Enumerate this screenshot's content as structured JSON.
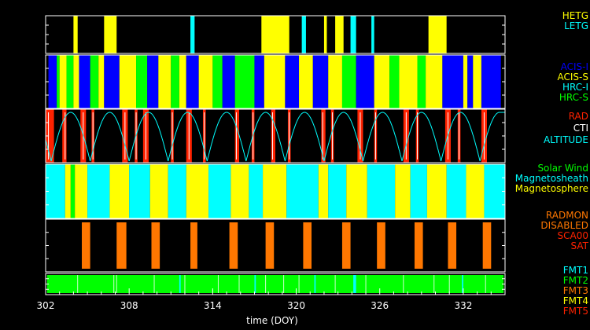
{
  "chart_data": {
    "type": "timeline",
    "x_range": [
      302,
      335
    ],
    "x_ticks": [
      302,
      308,
      314,
      320,
      326,
      332
    ],
    "xlabel": "time (DOY)",
    "colors": {
      "yellow": "#ffff00",
      "cyan": "#00ffff",
      "blue": "#0000ff",
      "green": "#00ff00",
      "red": "#ff2200",
      "orange": "#ff7700",
      "white": "#ffffff",
      "black": "#000000"
    },
    "panels": [
      {
        "id": "grating",
        "legend": [
          {
            "label": "HETG",
            "color": "#ffff00"
          },
          {
            "label": "LETG",
            "color": "#00ffff"
          }
        ],
        "segments": [
          {
            "start": 304.0,
            "end": 304.3,
            "color": "#ffff00"
          },
          {
            "start": 306.2,
            "end": 307.1,
            "color": "#ffff00"
          },
          {
            "start": 312.4,
            "end": 312.7,
            "color": "#00ffff"
          },
          {
            "start": 317.5,
            "end": 319.5,
            "color": "#ffff00"
          },
          {
            "start": 320.4,
            "end": 320.7,
            "color": "#00ffff"
          },
          {
            "start": 322.0,
            "end": 322.2,
            "color": "#ffff00"
          },
          {
            "start": 322.8,
            "end": 323.4,
            "color": "#ffff00"
          },
          {
            "start": 323.9,
            "end": 324.3,
            "color": "#00ffff"
          },
          {
            "start": 325.4,
            "end": 325.6,
            "color": "#00ffff"
          },
          {
            "start": 329.5,
            "end": 330.8,
            "color": "#ffff00"
          }
        ]
      },
      {
        "id": "instrument",
        "legend": [
          {
            "label": "ACIS-I",
            "color": "#0000ff"
          },
          {
            "label": "ACIS-S",
            "color": "#ffff00"
          },
          {
            "label": "HRC-I",
            "color": "#00ffff"
          },
          {
            "label": "HRC-S",
            "color": "#00ff00"
          }
        ],
        "segments": [
          {
            "start": 302.2,
            "end": 302.8,
            "color": "#0000ff"
          },
          {
            "start": 302.8,
            "end": 303.0,
            "color": "#00ff00"
          },
          {
            "start": 303.0,
            "end": 303.5,
            "color": "#ffff00"
          },
          {
            "start": 303.5,
            "end": 304.0,
            "color": "#00ff00"
          },
          {
            "start": 304.0,
            "end": 304.4,
            "color": "#ffff00"
          },
          {
            "start": 304.4,
            "end": 305.2,
            "color": "#0000ff"
          },
          {
            "start": 305.2,
            "end": 305.8,
            "color": "#00ff00"
          },
          {
            "start": 305.8,
            "end": 306.2,
            "color": "#ffff00"
          },
          {
            "start": 306.2,
            "end": 307.3,
            "color": "#0000ff"
          },
          {
            "start": 307.3,
            "end": 308.5,
            "color": "#ffff00"
          },
          {
            "start": 308.5,
            "end": 309.3,
            "color": "#00ff00"
          },
          {
            "start": 309.3,
            "end": 310.1,
            "color": "#0000ff"
          },
          {
            "start": 310.1,
            "end": 311.0,
            "color": "#ffff00"
          },
          {
            "start": 311.0,
            "end": 311.6,
            "color": "#00ff00"
          },
          {
            "start": 311.6,
            "end": 312.1,
            "color": "#ffff00"
          },
          {
            "start": 312.1,
            "end": 313.0,
            "color": "#0000ff"
          },
          {
            "start": 313.0,
            "end": 314.0,
            "color": "#ffff00"
          },
          {
            "start": 314.0,
            "end": 314.7,
            "color": "#00ff00"
          },
          {
            "start": 314.7,
            "end": 315.6,
            "color": "#0000ff"
          },
          {
            "start": 315.6,
            "end": 317.0,
            "color": "#00ff00"
          },
          {
            "start": 317.0,
            "end": 317.7,
            "color": "#0000ff"
          },
          {
            "start": 317.7,
            "end": 319.2,
            "color": "#ffff00"
          },
          {
            "start": 319.2,
            "end": 320.2,
            "color": "#0000ff"
          },
          {
            "start": 320.2,
            "end": 321.2,
            "color": "#ffff00"
          },
          {
            "start": 321.2,
            "end": 322.3,
            "color": "#0000ff"
          },
          {
            "start": 322.3,
            "end": 323.3,
            "color": "#ffff00"
          },
          {
            "start": 323.3,
            "end": 324.3,
            "color": "#00ff00"
          },
          {
            "start": 324.3,
            "end": 325.6,
            "color": "#0000ff"
          },
          {
            "start": 325.6,
            "end": 326.7,
            "color": "#ffff00"
          },
          {
            "start": 326.7,
            "end": 327.4,
            "color": "#00ff00"
          },
          {
            "start": 327.4,
            "end": 328.7,
            "color": "#ffff00"
          },
          {
            "start": 328.7,
            "end": 329.3,
            "color": "#00ff00"
          },
          {
            "start": 329.3,
            "end": 330.5,
            "color": "#ffff00"
          },
          {
            "start": 330.5,
            "end": 332.0,
            "color": "#0000ff"
          },
          {
            "start": 332.0,
            "end": 332.3,
            "color": "#ffff00"
          },
          {
            "start": 332.3,
            "end": 332.7,
            "color": "#0000ff"
          },
          {
            "start": 332.7,
            "end": 333.3,
            "color": "#ffff00"
          },
          {
            "start": 333.3,
            "end": 334.7,
            "color": "#0000ff"
          }
        ]
      },
      {
        "id": "radiation",
        "legend": [
          {
            "label": "RAD",
            "color": "#ff2200"
          },
          {
            "label": "CTI",
            "color": "#ffffff"
          },
          {
            "label": "ALTITUDE",
            "color": "#00ffff"
          }
        ],
        "segments": [
          {
            "start": 302.0,
            "end": 302.6,
            "color": "#ff2200"
          },
          {
            "start": 303.2,
            "end": 303.5,
            "color": "#ff2200"
          },
          {
            "start": 304.5,
            "end": 304.9,
            "color": "#ff2200"
          },
          {
            "start": 305.3,
            "end": 305.5,
            "color": "#ff2200"
          },
          {
            "start": 307.5,
            "end": 307.9,
            "color": "#ff2200"
          },
          {
            "start": 308.4,
            "end": 308.6,
            "color": "#ff2200"
          },
          {
            "start": 309.0,
            "end": 309.4,
            "color": "#ff2200"
          },
          {
            "start": 311.0,
            "end": 311.2,
            "color": "#ff2200"
          },
          {
            "start": 312.1,
            "end": 312.5,
            "color": "#ff2200"
          },
          {
            "start": 313.3,
            "end": 313.5,
            "color": "#ff2200"
          },
          {
            "start": 315.6,
            "end": 315.9,
            "color": "#ff2200"
          },
          {
            "start": 316.8,
            "end": 317.0,
            "color": "#ff2200"
          },
          {
            "start": 318.2,
            "end": 318.5,
            "color": "#ff2200"
          },
          {
            "start": 319.4,
            "end": 319.6,
            "color": "#ff2200"
          },
          {
            "start": 321.8,
            "end": 322.1,
            "color": "#ff2200"
          },
          {
            "start": 322.5,
            "end": 322.7,
            "color": "#ff2200"
          },
          {
            "start": 324.4,
            "end": 324.8,
            "color": "#ff2200"
          },
          {
            "start": 325.6,
            "end": 325.8,
            "color": "#ff2200"
          },
          {
            "start": 327.7,
            "end": 328.1,
            "color": "#ff2200"
          },
          {
            "start": 328.6,
            "end": 328.8,
            "color": "#ff2200"
          },
          {
            "start": 330.7,
            "end": 331.1,
            "color": "#ff2200"
          },
          {
            "start": 331.6,
            "end": 331.8,
            "color": "#ff2200"
          },
          {
            "start": 333.3,
            "end": 333.7,
            "color": "#ff2200"
          }
        ],
        "cti_marks": [
          302.2,
          303.4,
          304.7,
          305.4,
          307.7,
          308.5,
          309.2,
          311.1,
          312.3,
          313.4,
          315.7,
          316.9,
          318.3,
          319.5,
          321.9,
          322.6,
          324.6,
          325.7,
          327.9,
          328.7,
          330.9,
          331.7,
          333.5
        ],
        "altitude_minima": [
          302.4,
          305.2,
          308.0,
          310.8,
          313.6,
          316.4,
          319.2,
          322.0,
          324.8,
          327.6,
          330.4,
          333.2
        ],
        "altitude_period": 2.8
      },
      {
        "id": "environment",
        "legend": [
          {
            "label": "Solar Wind",
            "color": "#00ff00"
          },
          {
            "label": "Magnetosheath",
            "color": "#00ffff"
          },
          {
            "label": "Magnetosphere",
            "color": "#ffff00"
          }
        ],
        "segments": [
          {
            "start": 302.0,
            "end": 303.4,
            "color": "#00ffff"
          },
          {
            "start": 303.4,
            "end": 303.8,
            "color": "#ffff00"
          },
          {
            "start": 303.8,
            "end": 304.1,
            "color": "#00ff00"
          },
          {
            "start": 304.1,
            "end": 305.0,
            "color": "#ffff00"
          },
          {
            "start": 305.0,
            "end": 306.6,
            "color": "#00ffff"
          },
          {
            "start": 306.6,
            "end": 308.0,
            "color": "#ffff00"
          },
          {
            "start": 308.0,
            "end": 309.5,
            "color": "#00ffff"
          },
          {
            "start": 309.5,
            "end": 310.8,
            "color": "#ffff00"
          },
          {
            "start": 310.8,
            "end": 312.1,
            "color": "#00ffff"
          },
          {
            "start": 312.1,
            "end": 313.7,
            "color": "#ffff00"
          },
          {
            "start": 313.7,
            "end": 315.3,
            "color": "#00ffff"
          },
          {
            "start": 315.3,
            "end": 316.6,
            "color": "#ffff00"
          },
          {
            "start": 316.6,
            "end": 317.6,
            "color": "#00ffff"
          },
          {
            "start": 317.6,
            "end": 319.3,
            "color": "#ffff00"
          },
          {
            "start": 319.3,
            "end": 321.6,
            "color": "#00ffff"
          },
          {
            "start": 321.6,
            "end": 322.3,
            "color": "#ffff00"
          },
          {
            "start": 322.3,
            "end": 323.6,
            "color": "#00ffff"
          },
          {
            "start": 323.6,
            "end": 325.1,
            "color": "#ffff00"
          },
          {
            "start": 325.1,
            "end": 327.1,
            "color": "#00ffff"
          },
          {
            "start": 327.1,
            "end": 328.2,
            "color": "#ffff00"
          },
          {
            "start": 328.2,
            "end": 329.4,
            "color": "#00ffff"
          },
          {
            "start": 329.4,
            "end": 330.8,
            "color": "#ffff00"
          },
          {
            "start": 330.8,
            "end": 332.2,
            "color": "#00ffff"
          },
          {
            "start": 332.2,
            "end": 333.5,
            "color": "#ffff00"
          },
          {
            "start": 333.5,
            "end": 335.0,
            "color": "#00ffff"
          }
        ]
      },
      {
        "id": "radmon",
        "legend": [
          {
            "label": "RADMON",
            "color": "#ff7700"
          },
          {
            "label": "DISABLED",
            "color": "#ff7700"
          },
          {
            "label": "SCA00",
            "color": "#ff2200"
          },
          {
            "label": "SAT",
            "color": "#ff2200"
          }
        ],
        "segments": [
          {
            "start": 304.6,
            "end": 305.2,
            "color": "#ff7700"
          },
          {
            "start": 307.1,
            "end": 307.8,
            "color": "#ff7700"
          },
          {
            "start": 309.6,
            "end": 310.2,
            "color": "#ff7700"
          },
          {
            "start": 312.4,
            "end": 312.9,
            "color": "#ff7700"
          },
          {
            "start": 315.2,
            "end": 315.8,
            "color": "#ff7700"
          },
          {
            "start": 317.8,
            "end": 318.4,
            "color": "#ff7700"
          },
          {
            "start": 320.5,
            "end": 321.1,
            "color": "#ff7700"
          },
          {
            "start": 323.3,
            "end": 323.9,
            "color": "#ff7700"
          },
          {
            "start": 325.8,
            "end": 326.4,
            "color": "#ff7700"
          },
          {
            "start": 328.5,
            "end": 329.1,
            "color": "#ff7700"
          },
          {
            "start": 330.9,
            "end": 331.5,
            "color": "#ff7700"
          },
          {
            "start": 333.4,
            "end": 334.0,
            "color": "#ff7700"
          }
        ]
      },
      {
        "id": "format",
        "legend": [
          {
            "label": "FMT1",
            "color": "#00ffff"
          },
          {
            "label": "FMT2",
            "color": "#00ff00"
          },
          {
            "label": "FMT3",
            "color": "#ff7700"
          },
          {
            "label": "FMT4",
            "color": "#ffff00"
          },
          {
            "label": "FMT5",
            "color": "#ff2200"
          }
        ],
        "segments": [
          {
            "start": 302.1,
            "end": 334.9,
            "color": "#00ff00"
          },
          {
            "start": 311.6,
            "end": 311.7,
            "color": "#00ffff"
          },
          {
            "start": 317.0,
            "end": 317.1,
            "color": "#00ffff"
          },
          {
            "start": 321.3,
            "end": 321.4,
            "color": "#00ffff"
          },
          {
            "start": 324.1,
            "end": 324.3,
            "color": "#00ffff"
          },
          {
            "start": 331.9,
            "end": 332.0,
            "color": "#00ffff"
          }
        ],
        "white_marks": [
          304.3,
          306.9,
          307.1,
          309.8,
          312.0,
          314.4,
          315.9,
          317.8,
          319.1,
          320.2,
          322.8,
          325.0,
          327.7,
          329.9,
          331.0,
          333.6
        ]
      }
    ]
  }
}
